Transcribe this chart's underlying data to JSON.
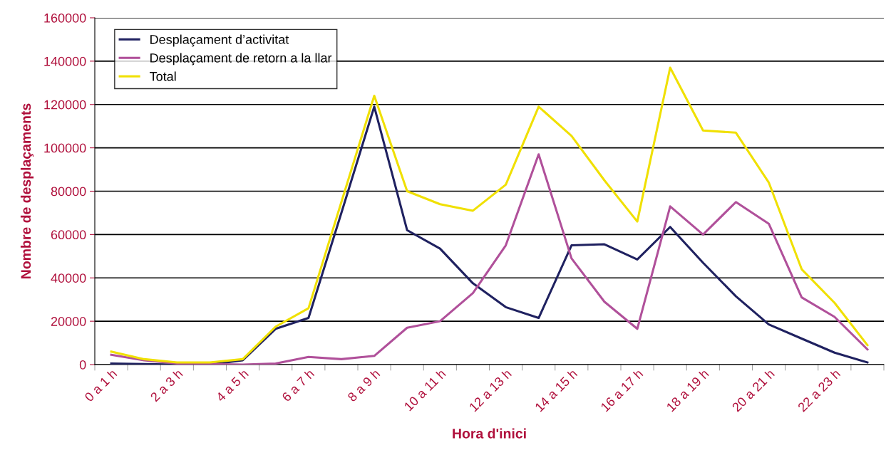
{
  "chart_data": {
    "type": "line",
    "xlabel": "Hora d'inici",
    "ylabel": "Nombre de desplaçaments",
    "categories": [
      "0 a 1 h",
      null,
      "2 a 3 h",
      null,
      "4 a 5 h",
      null,
      "6 a 7 h",
      null,
      "8 a 9 h",
      null,
      "10 a 11 h",
      null,
      "12 a 13 h",
      null,
      "14 a 15 h",
      null,
      "16 a 17 h",
      null,
      "18 a 19 h",
      null,
      "20 a 21 h",
      null,
      "22 a 23 h",
      null
    ],
    "series": [
      {
        "name": "Desplaçament d’activitat",
        "color": "#1f2160",
        "values": [
          500,
          200,
          0,
          0,
          2000,
          16500,
          21500,
          70000,
          119000,
          62000,
          53500,
          37500,
          26500,
          21500,
          55000,
          55500,
          48500,
          63500,
          47000,
          31500,
          18500,
          12000,
          5500,
          1000
        ]
      },
      {
        "name": "Desplaçament de retorn a la llar",
        "color": "#b0509a",
        "values": [
          4500,
          2000,
          500,
          200,
          0,
          500,
          3500,
          2500,
          4000,
          17000,
          20000,
          33000,
          55000,
          97000,
          49000,
          29000,
          16500,
          73000,
          60000,
          75000,
          65000,
          31000,
          22000,
          7000
        ]
      },
      {
        "name": "Total",
        "color": "#f0e000",
        "values": [
          6000,
          2500,
          1000,
          1000,
          2500,
          17500,
          26000,
          75000,
          124000,
          80000,
          74000,
          71000,
          83000,
          119000,
          105500,
          85000,
          66000,
          137000,
          108000,
          107000,
          84000,
          44000,
          28500,
          9000
        ]
      }
    ],
    "ylim": [
      0,
      160000
    ],
    "yticks": [
      0,
      20000,
      40000,
      60000,
      80000,
      100000,
      120000,
      140000,
      160000
    ],
    "grid": "y",
    "legend": "top left",
    "marker": "none",
    "line_style": "solid"
  }
}
